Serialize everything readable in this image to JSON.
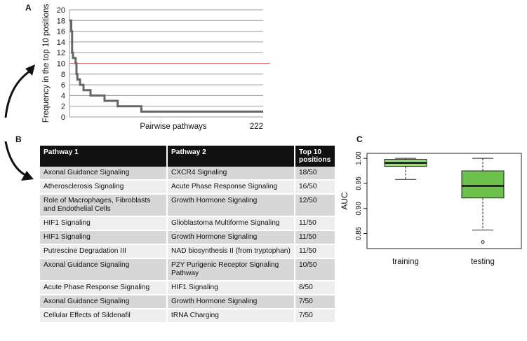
{
  "panels": {
    "a": "A",
    "b": "B",
    "c": "C"
  },
  "chart_data": [
    {
      "type": "line",
      "panel": "A",
      "ylabel": "Frequency in the top 10 positions",
      "xlabel": "Pairwise pathways",
      "x_end_label": "222",
      "ylim": [
        0,
        20
      ],
      "yticks": [
        0,
        2,
        4,
        6,
        8,
        10,
        12,
        14,
        16,
        18,
        20
      ],
      "xlim": [
        1,
        222
      ],
      "threshold": 10,
      "colors": {
        "line": "#666666",
        "threshold": "#e07a7a",
        "grid": "#9a9a9a"
      },
      "series": [
        {
          "name": "frequency",
          "points": [
            [
              1,
              18
            ],
            [
              3,
              16
            ],
            [
              4,
              12
            ],
            [
              5,
              11
            ],
            [
              7,
              11
            ],
            [
              8,
              10
            ],
            [
              9,
              8
            ],
            [
              10,
              7
            ],
            [
              13,
              6
            ],
            [
              16,
              6
            ],
            [
              17,
              5
            ],
            [
              24,
              5
            ],
            [
              25,
              4
            ],
            [
              40,
              4
            ],
            [
              41,
              3
            ],
            [
              55,
              3
            ],
            [
              56,
              2
            ],
            [
              82,
              2
            ],
            [
              83,
              1
            ],
            [
              222,
              1
            ]
          ]
        }
      ]
    },
    {
      "type": "boxplot",
      "panel": "C",
      "ylabel": "AUC",
      "ylim": [
        0.82,
        1.01
      ],
      "yticks": [
        0.85,
        0.9,
        0.95,
        1.0
      ],
      "ytick_labels": [
        "0.85",
        "0.90",
        "0.95",
        "1.00"
      ],
      "categories": [
        "training",
        "testing"
      ],
      "boxes": [
        {
          "name": "training",
          "min": 0.958,
          "q1": 0.984,
          "median": 0.991,
          "q3": 0.998,
          "max": 1.0,
          "outliers": [],
          "color": "#9ed68a"
        },
        {
          "name": "testing",
          "min": 0.857,
          "q1": 0.921,
          "median": 0.945,
          "q3": 0.975,
          "max": 1.0,
          "outliers": [
            0.833
          ],
          "color": "#6cc24a"
        }
      ]
    }
  ],
  "table": {
    "headers": [
      "Pathway 1",
      "Pathway 2",
      "Top 10 positions"
    ],
    "rows": [
      [
        "Axonal Guidance Signaling",
        "CXCR4 Signaling",
        "18/50"
      ],
      [
        "Atherosclerosis Signaling",
        "Acute Phase Response Signaling",
        "16/50"
      ],
      [
        "Role of Macrophages, Fibroblasts and Endothelial Cells",
        "Growth Hormone Signaling",
        "12/50"
      ],
      [
        "HIF1 Signaling",
        "Glioblastoma Multiforme Signaling",
        "11/50"
      ],
      [
        "HIF1 Signaling",
        "Growth Hormone Signaling",
        "11/50"
      ],
      [
        "Putrescine Degradation III",
        "NAD biosynthesis II (from tryptophan)",
        "11/50"
      ],
      [
        "Axonal Guidance Signaling",
        "P2Y Purigenic Receptor Signaling Pathway",
        "10/50"
      ],
      [
        "Acute Phase Response Signaling",
        "HIF1 Signaling",
        "8/50"
      ],
      [
        "Axonal Guidance Signaling",
        "Growth Hormone Signaling",
        "7/50"
      ],
      [
        "Cellular Effects of Sildenafil",
        "tRNA Charging",
        "7/50"
      ]
    ]
  }
}
